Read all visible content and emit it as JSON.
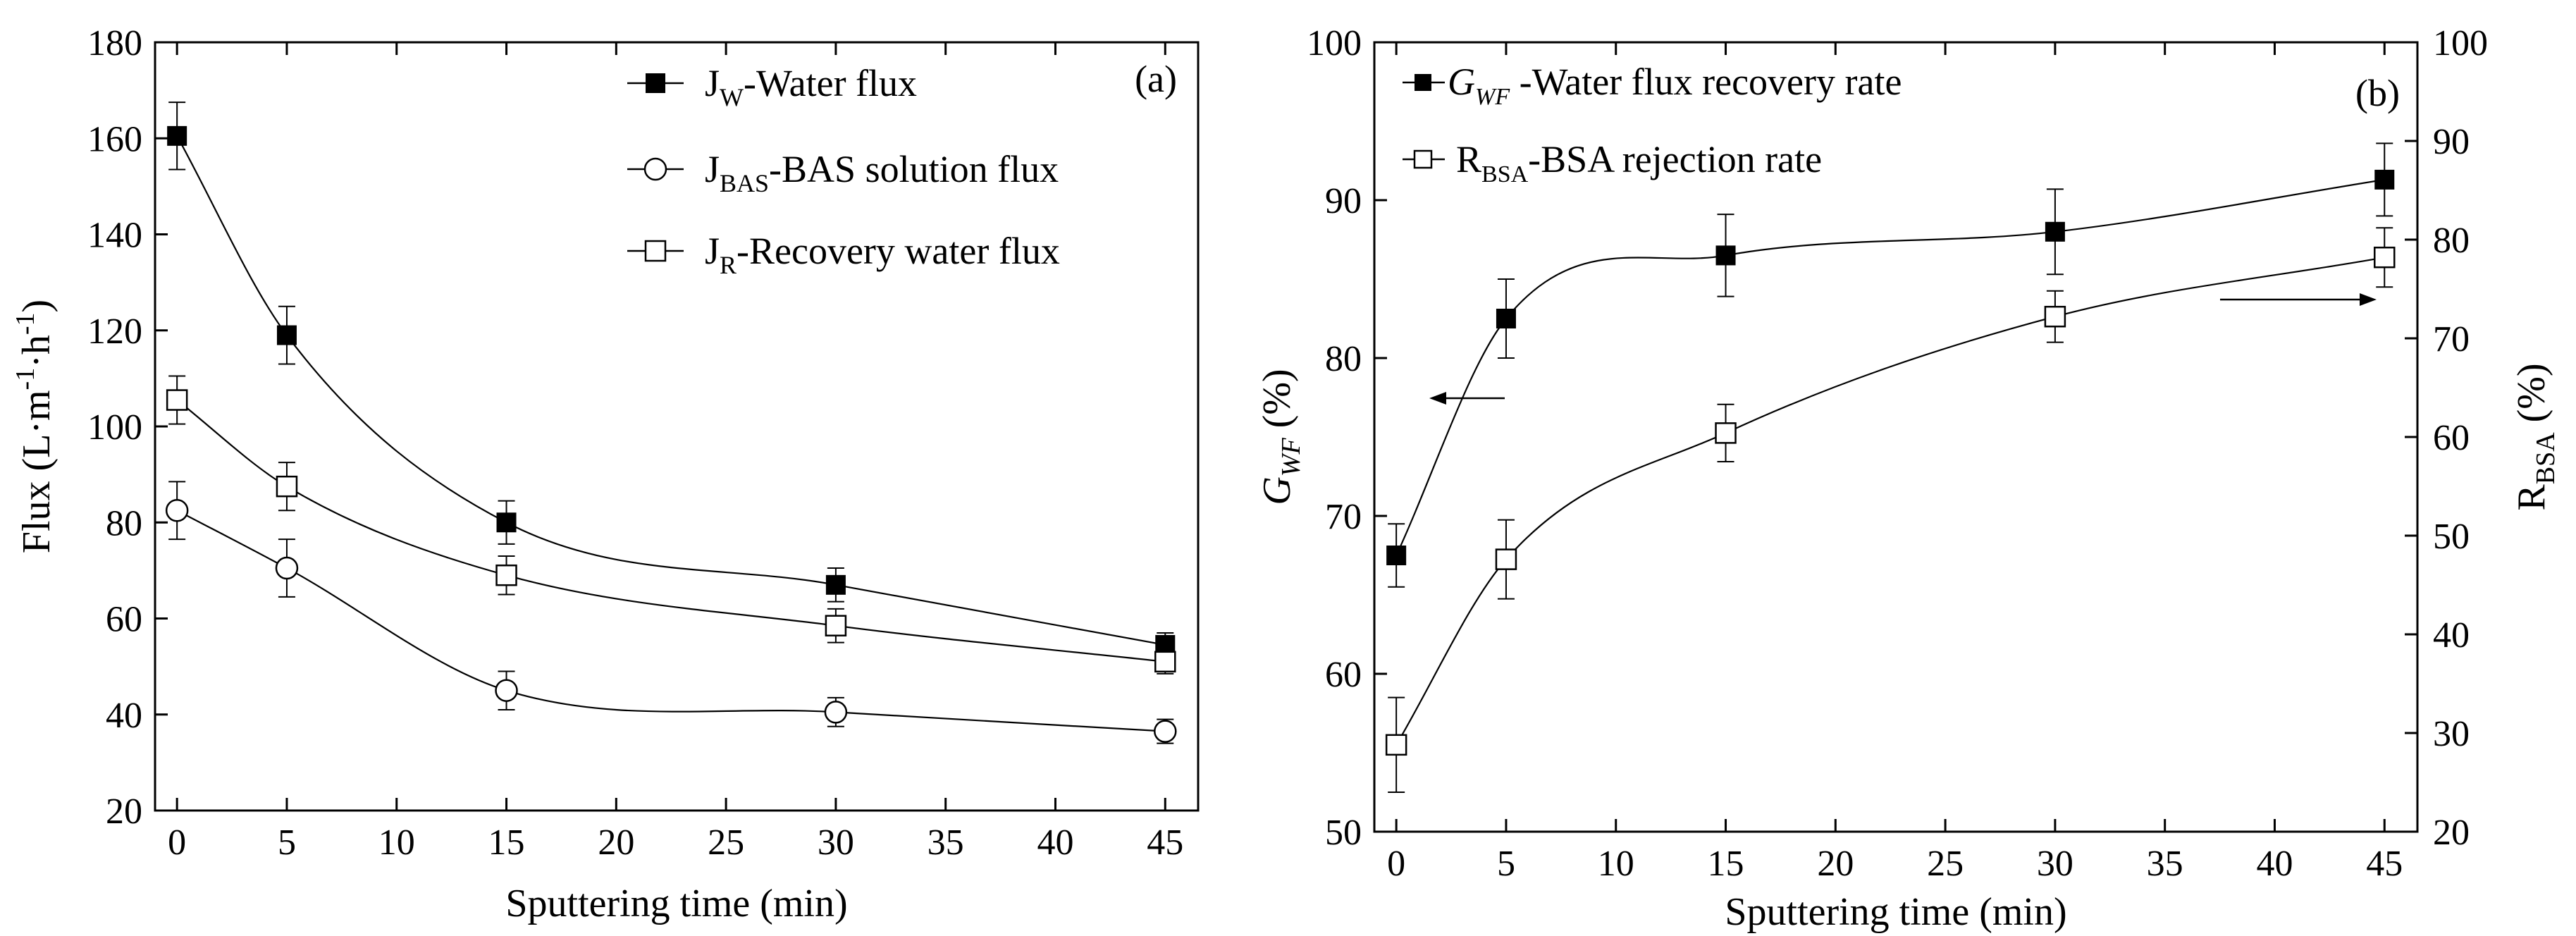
{
  "chart_data": [
    {
      "type": "scatter",
      "panel_label": "(a)",
      "xlabel": "Sputtering time (min)",
      "ylabel": "Flux (L·m-1·h-1)",
      "ylabel_parts": {
        "base": "Flux (L·m",
        "sup1": "-1",
        "mid": "·h",
        "sup2": "-1",
        "end": ")"
      },
      "xlim": [
        -1,
        46.5
      ],
      "ylim": [
        20,
        180
      ],
      "xticks": [
        "0",
        "5",
        "10",
        "15",
        "20",
        "25",
        "30",
        "35",
        "40",
        "45"
      ],
      "yticks": [
        "20",
        "40",
        "60",
        "80",
        "100",
        "120",
        "140",
        "160",
        "180"
      ],
      "series": [
        {
          "name": "JW-Water flux",
          "label_main": "J",
          "label_sub": "W",
          "label_rest": "-Water flux",
          "marker": "filled-square",
          "x": [
            0,
            5,
            15,
            30,
            45
          ],
          "y": [
            160.5,
            119,
            80,
            67,
            54.5
          ],
          "err": [
            7,
            6,
            4.5,
            3.5,
            2.5
          ]
        },
        {
          "name": "JBAS-BAS solution flux",
          "label_main": "J",
          "label_sub": "BAS",
          "label_rest": "-BAS solution flux",
          "marker": "open-circle",
          "x": [
            0,
            5,
            15,
            30,
            45
          ],
          "y": [
            82.5,
            70.5,
            45,
            40.5,
            36.5
          ],
          "err": [
            6,
            6,
            4,
            3,
            2.5
          ]
        },
        {
          "name": "JR-Recovery water flux",
          "label_main": "J",
          "label_sub": "R",
          "label_rest": "-Recovery water flux",
          "marker": "open-square",
          "x": [
            0,
            5,
            15,
            30,
            45
          ],
          "y": [
            105.5,
            87.5,
            69,
            58.5,
            51
          ],
          "err": [
            5,
            5,
            4,
            3.5,
            2.5
          ]
        }
      ],
      "grid": false,
      "legend_position": "top-right"
    },
    {
      "type": "scatter",
      "panel_label": "(b)",
      "xlabel": "Sputtering time (min)",
      "ylabel_left": "GWF (%)",
      "ylabel_left_parts": {
        "base": "G",
        "sub": "WF",
        "end": " (%)"
      },
      "ylabel_right": "RBSA (%)",
      "ylabel_right_parts": {
        "base": "R",
        "sub": "BSA",
        "end": " (%)"
      },
      "xlim": [
        -1,
        46.5
      ],
      "ylim_left": [
        50,
        100
      ],
      "ylim_right": [
        20,
        100
      ],
      "xticks": [
        "0",
        "5",
        "10",
        "15",
        "20",
        "25",
        "30",
        "35",
        "40",
        "45"
      ],
      "yticks_left": [
        "50",
        "60",
        "70",
        "80",
        "90",
        "100"
      ],
      "yticks_right": [
        "20",
        "30",
        "40",
        "50",
        "60",
        "70",
        "80",
        "90",
        "100"
      ],
      "series": [
        {
          "name": "GWF-Water flux recovery rate",
          "label_main": "G",
          "label_sub": "WF",
          "label_rest": " -Water flux recovery rate",
          "marker": "filled-square",
          "axis": "left",
          "x": [
            0,
            5,
            15,
            30,
            45
          ],
          "y": [
            67.5,
            82.5,
            86.5,
            88,
            91.3
          ],
          "err": [
            2,
            2.5,
            2.6,
            2.7,
            2.3
          ]
        },
        {
          "name": "RBSA-BSA rejection rate",
          "label_main": "R",
          "label_sub": "BSA",
          "label_rest": "-BSA rejection rate",
          "marker": "open-square",
          "axis": "right",
          "x": [
            0,
            5,
            15,
            30,
            45
          ],
          "y": [
            28.8,
            47.6,
            60.4,
            72.2,
            78.2
          ],
          "err": [
            4.8,
            4,
            2.9,
            2.6,
            3
          ]
        }
      ],
      "grid": false,
      "legend_position": "top-left"
    }
  ]
}
